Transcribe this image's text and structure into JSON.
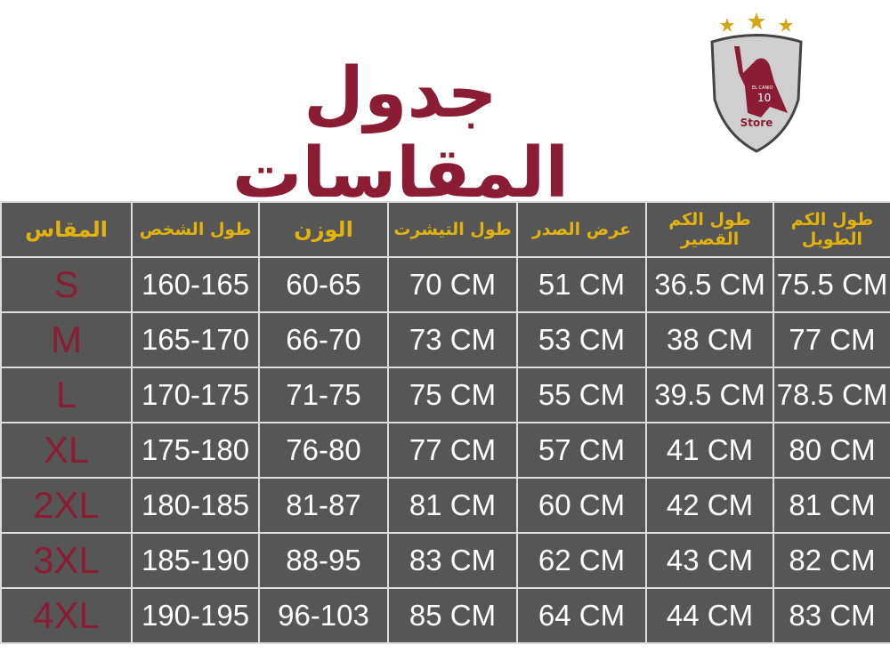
{
  "title": "جدول المقاسات",
  "logo": {
    "text_top": "EL CANIO",
    "number": "10",
    "text_bottom": "Store",
    "star_color": "#d4a515",
    "brand_color": "#8a1c33"
  },
  "colors": {
    "table_bg": "#565656",
    "header_text": "#e3b30d",
    "size_text": "#8a1c33",
    "value_text": "#ffffff"
  },
  "headers": [
    "المقاس",
    "طول الشخص",
    "الوزن",
    "طول التيشرت",
    "عرض الصدر",
    "طول الكم القصير",
    "طول الكم الطويل"
  ],
  "rows": [
    [
      "S",
      "160-165",
      "60-65",
      "70 CM",
      "51 CM",
      "36.5 CM",
      "75.5 CM"
    ],
    [
      "M",
      "165-170",
      "66-70",
      "73 CM",
      "53 CM",
      "38 CM",
      "77 CM"
    ],
    [
      "L",
      "170-175",
      "71-75",
      "75 CM",
      "55 CM",
      "39.5 CM",
      "78.5 CM"
    ],
    [
      "XL",
      "175-180",
      "76-80",
      "77 CM",
      "57 CM",
      "41 CM",
      "80 CM"
    ],
    [
      "2XL",
      "180-185",
      "81-87",
      "81 CM",
      "60 CM",
      "42 CM",
      "81 CM"
    ],
    [
      "3XL",
      "185-190",
      "88-95",
      "83 CM",
      "62 CM",
      "43 CM",
      "82 CM"
    ],
    [
      "4XL",
      "190-195",
      "96-103",
      "85 CM",
      "64 CM",
      "44 CM",
      "83 CM"
    ]
  ]
}
